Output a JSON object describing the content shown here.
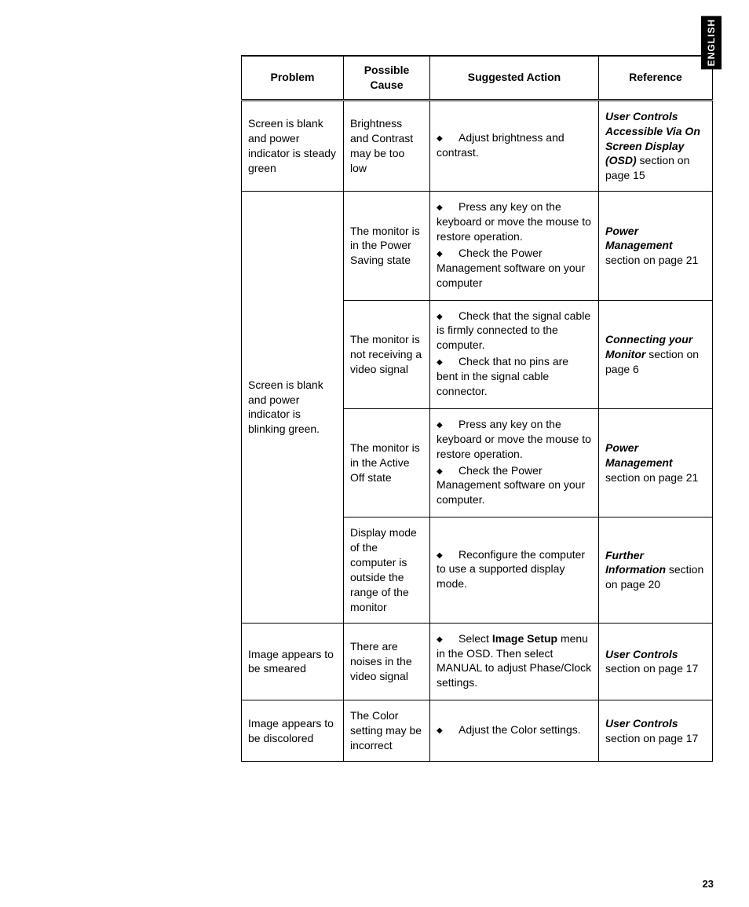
{
  "page": {
    "language_tab": "ENGLISH",
    "page_number": "23"
  },
  "table": {
    "headers": {
      "problem": "Problem",
      "cause": "Possible Cause",
      "action": "Suggested Action",
      "reference": "Reference"
    },
    "rows": {
      "r1": {
        "problem": "Screen is blank and power indicator is steady green",
        "cause": "Brightness and Contrast may be too low",
        "actions": {
          "a1": "Adjust brightness and contrast."
        },
        "ref_title": "User Controls Accessible Via On Screen Display (OSD)",
        "ref_tail": " section on page 15"
      },
      "r2": {
        "problem": "Screen is blank and power indicator is blinking green.",
        "sub": {
          "s1": {
            "cause": "The monitor is in the Power Saving state",
            "actions": {
              "a1": "Press any key on the keyboard or move the mouse to restore operation.",
              "a2": "Check the Power Management software on your computer"
            },
            "ref_title": "Power Management",
            "ref_tail": " section on page 21"
          },
          "s2": {
            "cause": "The monitor is not receiving a video signal",
            "actions": {
              "a1": "Check that the signal cable is firmly connected to the computer.",
              "a2": "Check that no pins are bent in the signal cable connector."
            },
            "ref_title": "Connecting your Monitor",
            "ref_tail": " section on page 6"
          },
          "s3": {
            "cause": "The monitor is in the Active Off state",
            "actions": {
              "a1": "Press any key on the keyboard or move the mouse to restore operation.",
              "a2": "Check the Power Management software on your computer."
            },
            "ref_title": "Power Management",
            "ref_tail": " section on page 21"
          },
          "s4": {
            "cause": "Display mode of the computer is outside the range of the monitor",
            "actions": {
              "a1": "Reconfigure the computer to use a supported display mode."
            },
            "ref_title": "Further Information",
            "ref_tail": " section on page 20"
          }
        }
      },
      "r3": {
        "problem": "Image appears to be smeared",
        "cause": "There are noises in the video signal",
        "action_pre": "Select ",
        "action_bold": "Image Setup",
        "action_post": " menu in the OSD. Then select MANUAL to adjust Phase/Clock settings.",
        "ref_title": "User Controls",
        "ref_tail": " section on page 17"
      },
      "r4": {
        "problem": "Image appears to be discolored",
        "cause": "The Color setting may be incorrect",
        "actions": {
          "a1": "Adjust the Color settings."
        },
        "ref_title": "User Controls",
        "ref_tail": " section on page 17"
      }
    }
  }
}
